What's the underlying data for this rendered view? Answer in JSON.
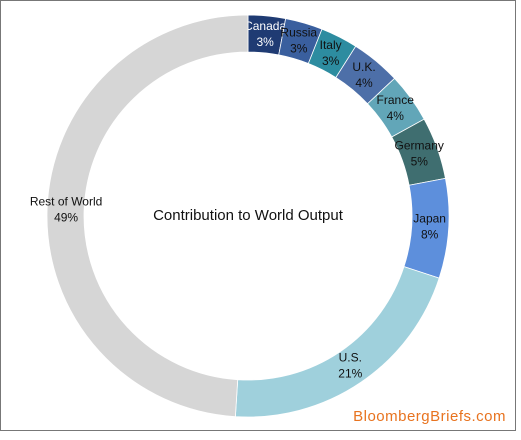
{
  "chart_data": {
    "type": "donut",
    "title": "Contribution to World Output",
    "categories": [
      "Canada",
      "Russia",
      "Italy",
      "U.K.",
      "France",
      "Germany",
      "Japan",
      "U.S.",
      "Rest of World"
    ],
    "values": [
      3,
      3,
      3,
      4,
      4,
      5,
      8,
      21,
      49
    ],
    "value_labels": [
      "3%",
      "3%",
      "3%",
      "4%",
      "4%",
      "5%",
      "8%",
      "21%",
      "49%"
    ],
    "colors": [
      "#1f3b73",
      "#3a5f9e",
      "#2d8ca0",
      "#4d6fa8",
      "#62a6b8",
      "#3f6e70",
      "#5d8fdc",
      "#9fd0dc",
      "#d6d6d6"
    ],
    "source": "BloombergBriefs.com"
  }
}
